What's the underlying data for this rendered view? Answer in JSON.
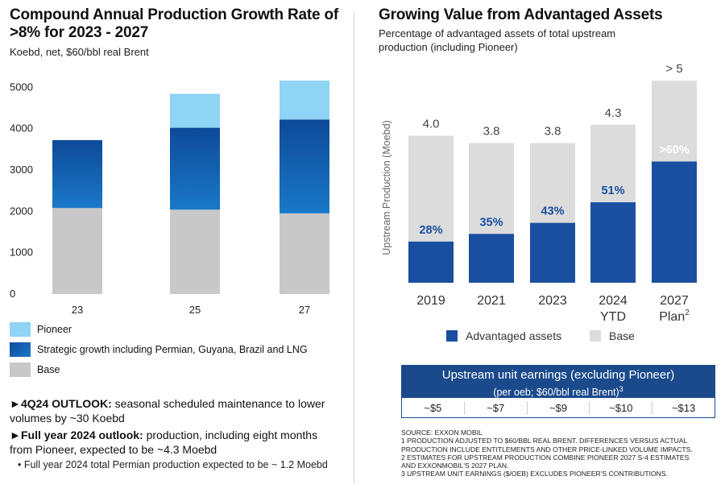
{
  "left": {
    "title_line1": "Compound Annual Production Growth Rate of",
    "title_line2": ">8% for 2023 - 2027",
    "subtitle": "Koebd, net, $60/bbl real Brent",
    "legend": [
      {
        "label": "Pioneer",
        "color": "#8fd3f5"
      },
      {
        "label": "Strategic growth including Permian, Guyana, Brazil and LNG",
        "color": "#1a6bbf"
      },
      {
        "label": "Base",
        "color": "#c8c8c8"
      }
    ],
    "bullets": [
      {
        "bold": "4Q24 OUTLOOK:",
        "text": " seasonal scheduled maintenance to lower volumes by ~30 Koebd"
      },
      {
        "bold": "Full year 2024 outlook:",
        "text": " production, including eight months from Pioneer, expected to be ~4.3 Moebd"
      }
    ],
    "sub_bullet": "• Full year 2024 total Permian production expected to be ~ 1.2 Moebd"
  },
  "right": {
    "title": "Growing Value from Advantaged Assets",
    "subtitle_line1": "Percentage of advantaged assets of total upstream",
    "subtitle_line2": "production (including Pioneer)",
    "earnings": {
      "title": "Upstream unit earnings (excluding Pioneer)",
      "subtitle": "(per oeb; $60/bbl real Brent)",
      "subtitle_sup": "3",
      "values": [
        "~$5",
        "~$7",
        "~$9",
        "~$10",
        "~$13"
      ]
    },
    "notes": [
      "SOURCE: EXXON MOBIL",
      "1 PRODUCTION ADJUSTED TO $60/BBL REAL BRENT. DIFFERENCES VERSUS ACTUAL",
      "PRODUCTION INCLUDE ENTITLEMENTS AND OTHER PRICE-LINKED VOLUME IMPACTS.",
      "2 ESTIMATES FOR UPSTREAM PRODUCTION COMBINE PIONEER 2027 S-4 ESTIMATES",
      "AND EXXONMOBIL'S 2027 PLAN.",
      "3 UPSTREAM UNIT EARNINGS ($/OEB) EXCLUDES PIONEER'S CONTRIBUTIONS."
    ]
  },
  "chart_data": [
    {
      "type": "bar",
      "stacked": true,
      "title": "Compound Annual Production Growth Rate of >8% for 2023 - 2027",
      "subtitle": "Koebd, net, $60/bbl real Brent",
      "categories": [
        "23",
        "25",
        "27"
      ],
      "series": [
        {
          "name": "Base",
          "values": [
            2080,
            2040,
            1950
          ],
          "color": "#c8c8c8"
        },
        {
          "name": "Strategic growth including Permian, Guyana, Brazil and LNG",
          "values": [
            1640,
            1980,
            2270
          ],
          "color": "#1a6bbf"
        },
        {
          "name": "Pioneer",
          "values": [
            0,
            820,
            940
          ],
          "color": "#8fd3f5"
        }
      ],
      "yticks": [
        0,
        1000,
        2000,
        3000,
        4000,
        5000
      ],
      "ylim": [
        0,
        5200
      ],
      "grid": false,
      "legend": "bottom"
    },
    {
      "type": "bar",
      "stacked": true,
      "title": "Growing Value from Advantaged Assets",
      "ylabel": "Upstream Production (Moebd)",
      "categories": [
        "2019",
        "2021",
        "2023",
        "2024",
        "2027"
      ],
      "category_sublabels": [
        "",
        "",
        "",
        "YTD",
        "Plan"
      ],
      "category_sup": [
        "",
        "",
        "",
        "",
        "2"
      ],
      "totals": [
        4.0,
        3.8,
        3.8,
        4.3,
        5.5
      ],
      "total_labels": [
        "4.0",
        "3.8",
        "3.8",
        "4.3",
        "> 5"
      ],
      "series": [
        {
          "name": "Advantaged assets",
          "values": [
            1.12,
            1.33,
            1.63,
            2.19,
            3.3
          ],
          "labels": [
            "28%",
            "35%",
            "43%",
            "51%",
            ">60%"
          ],
          "color": "#1a4fa0"
        },
        {
          "name": "Base",
          "values": [
            2.88,
            2.47,
            2.17,
            2.11,
            2.2
          ],
          "color": "#dcdcdc"
        }
      ],
      "ylim": [
        0,
        5.7
      ],
      "grid": false,
      "legend": "bottom"
    }
  ]
}
